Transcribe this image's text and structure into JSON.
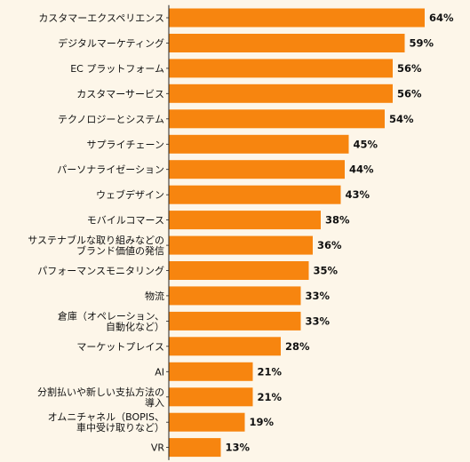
{
  "chart_data": {
    "type": "bar",
    "orientation": "horizontal",
    "title": "",
    "xlabel": "",
    "ylabel": "",
    "xlim": [
      0,
      64
    ],
    "grid": false,
    "legend": "none",
    "value_suffix": "%",
    "colors": {
      "bar": "#f7850f",
      "background": "#fdf6e9",
      "axis": "#222222",
      "text": "#111111"
    },
    "categories": [
      [
        "カスタマーエクスペリエンス"
      ],
      [
        "デジタルマーケティング"
      ],
      [
        "EC プラットフォーム"
      ],
      [
        "カスタマーサービス"
      ],
      [
        "テクノロジーとシステム"
      ],
      [
        "サプライチェーン"
      ],
      [
        "パーソナライゼーション"
      ],
      [
        "ウェブデザイン"
      ],
      [
        "モバイルコマース"
      ],
      [
        "サステナブルな取り組みなどの",
        "ブランド価値の発信"
      ],
      [
        "パフォーマンスモニタリング"
      ],
      [
        "物流"
      ],
      [
        "倉庫（オペレーション、",
        "自動化など）"
      ],
      [
        "マーケットプレイス"
      ],
      [
        "AI"
      ],
      [
        "分割払いや新しい支払方法の",
        "導入"
      ],
      [
        "オムニチャネル（BOPIS、",
        "車中受け取りなど）"
      ],
      [
        "VR"
      ]
    ],
    "values": [
      64,
      59,
      56,
      56,
      54,
      45,
      44,
      43,
      38,
      36,
      35,
      33,
      33,
      28,
      21,
      21,
      19,
      13
    ]
  }
}
